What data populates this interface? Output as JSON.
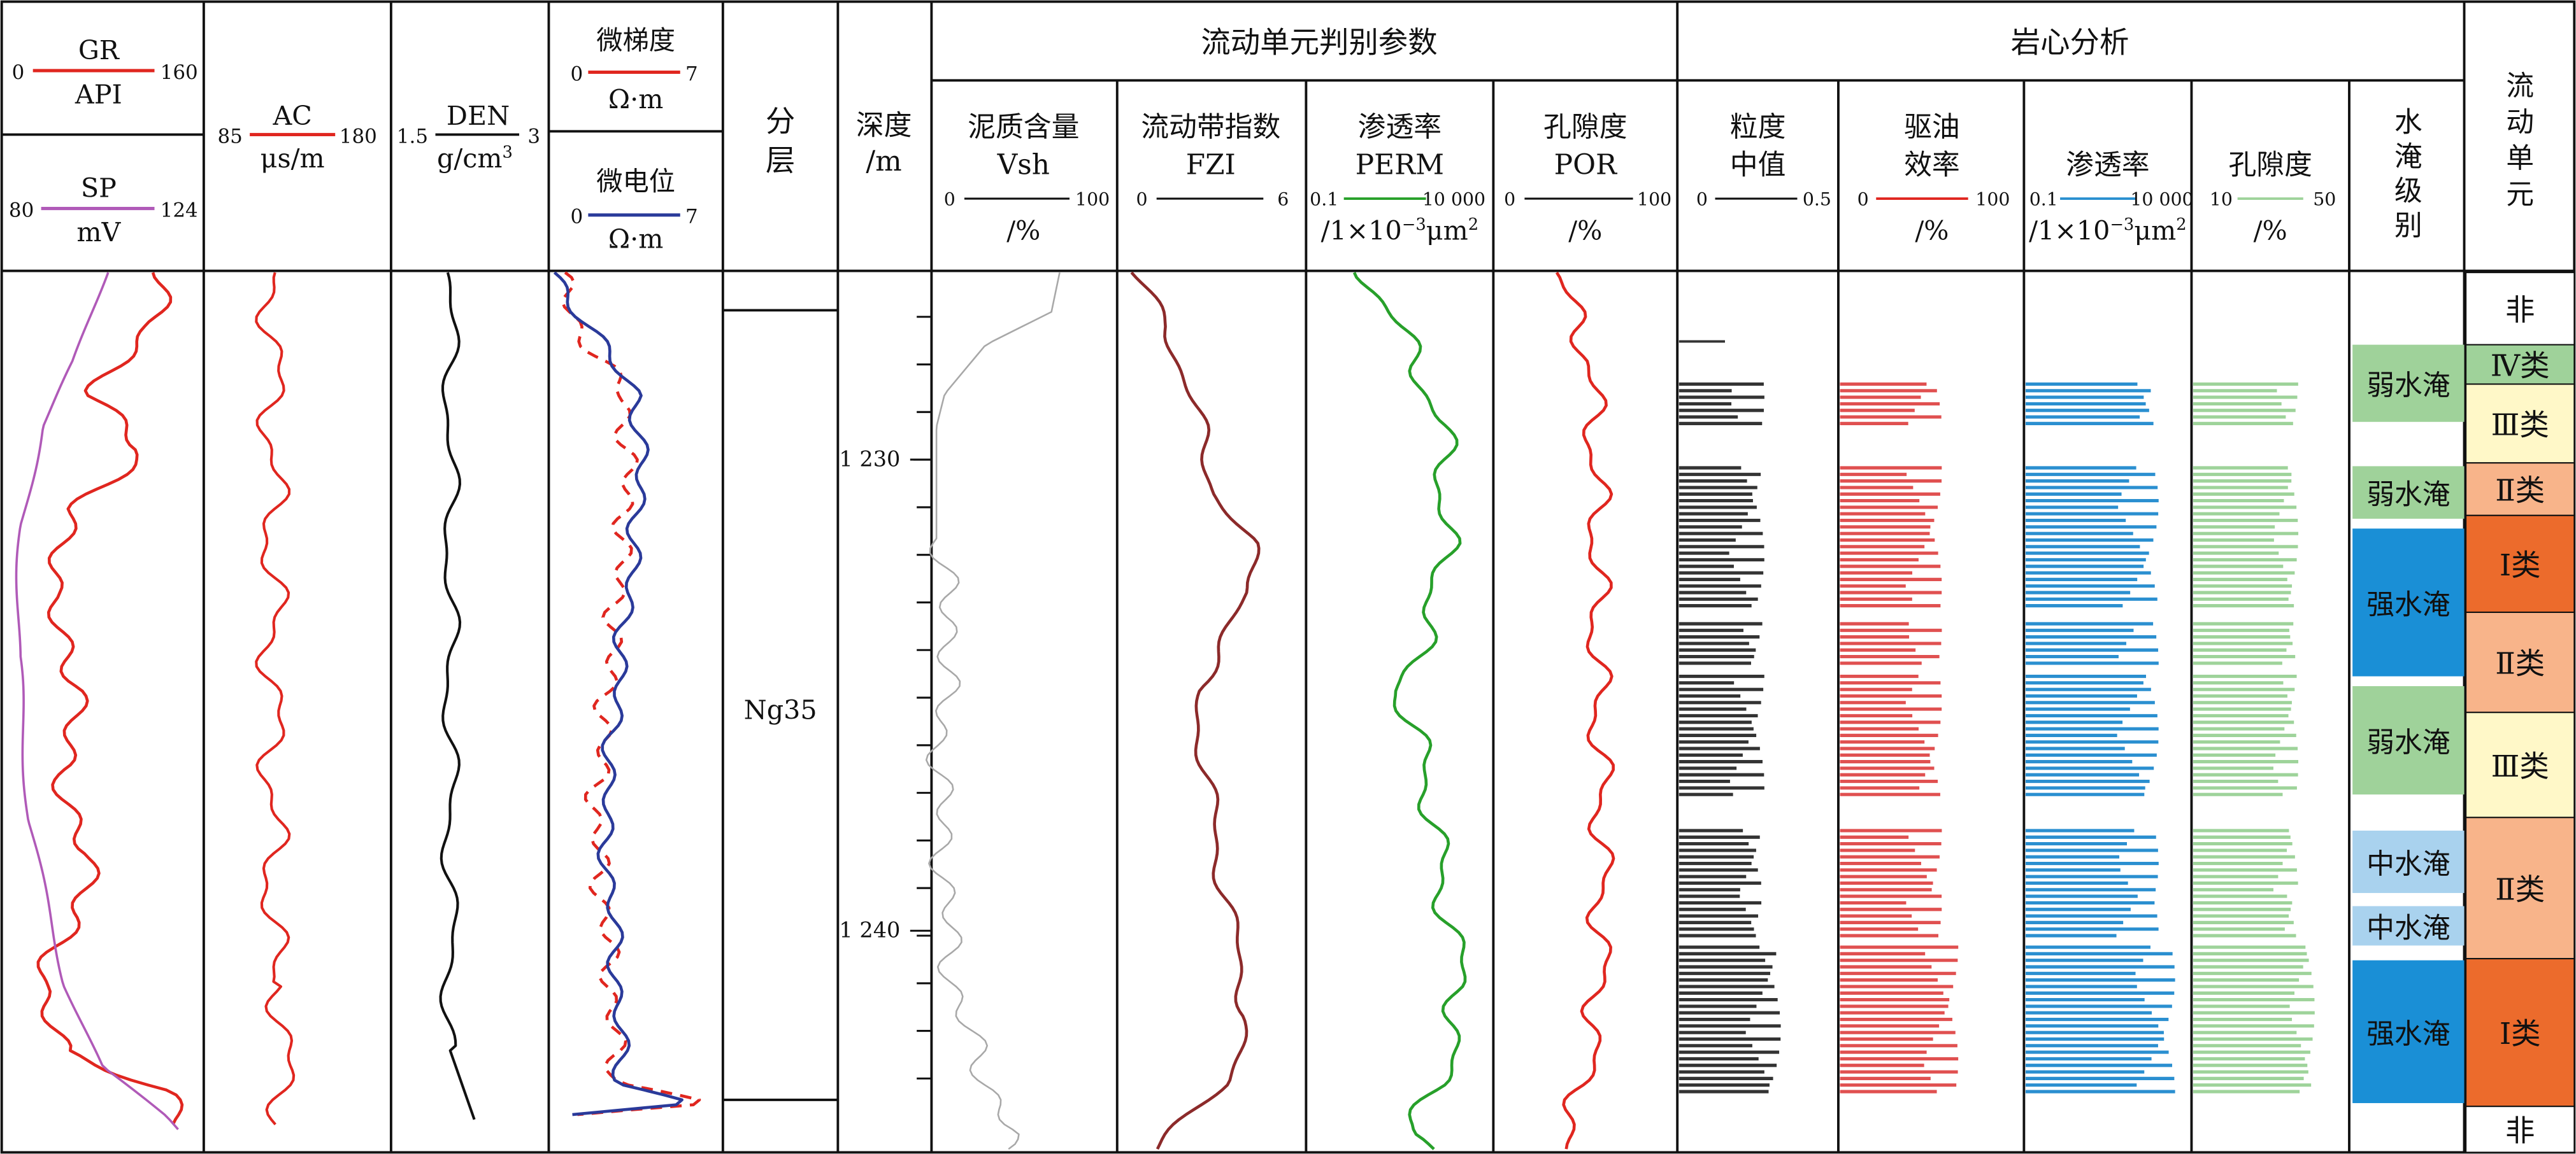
{
  "colors": {
    "gr": "#e0261f",
    "sp": "#b05ab8",
    "ac": "#e0261f",
    "den": "#111111",
    "mg": "#e0261f",
    "mn": "#2a3a9a",
    "vsh": "#a8a8a8",
    "fzi": "#8c2a2a",
    "perm": "#27a02a",
    "por": "#e0261f",
    "core_md": "#333333",
    "core_eff": "#e05050",
    "core_perm": "#2a8fd0",
    "core_por": "#9ed39a",
    "weak": "#9fd29a",
    "mid": "#a9d2ee",
    "strong": "#1a8fd6",
    "c1": "#ec6b2c",
    "c2": "#f8b48a",
    "c3": "#fff8c8",
    "c4": "#9fd29a"
  },
  "headers": {
    "gr_title": "GR",
    "gr_unit": "API",
    "gr_min": "0",
    "gr_max": "160",
    "sp_title": "SP",
    "sp_unit": "mV",
    "sp_min": "80",
    "sp_max": "124",
    "ac_title": "AC",
    "ac_unit": "μs/m",
    "ac_min": "85",
    "ac_max": "180",
    "den_title": "DEN",
    "den_min": "1.5",
    "den_max": "3",
    "mg_title": "微梯度",
    "mg_unit": "Ω·m",
    "mg_min": "0",
    "mg_max": "7",
    "mn_title": "微电位",
    "mn_unit": "Ω·m",
    "mn_min": "0",
    "mn_max": "7",
    "layer_1": "分",
    "layer_2": "层",
    "depth_1": "深度",
    "depth_2": "/m",
    "flow_param": "流动单元判别参数",
    "core_analysis": "岩心分析",
    "vsh_1": "泥质含量",
    "vsh_2": "Vsh",
    "vsh_min": "0",
    "vsh_max": "100",
    "vsh_unit": "/%",
    "fzi_1": "流动带指数",
    "fzi_2": "FZI",
    "fzi_min": "0",
    "fzi_max": "6",
    "perm_1": "渗透率",
    "perm_2": "PERM",
    "perm_min": "0.1",
    "perm_max": "10 000",
    "por_1": "孔隙度",
    "por_2": "POR",
    "por_min": "0",
    "por_max": "100",
    "por_unit": "/%",
    "md_1": "粒度",
    "md_2": "中值",
    "md_min": "0",
    "md_max": "0.5",
    "eff_1": "驱油",
    "eff_2": "效率",
    "eff_min": "0",
    "eff_max": "100",
    "eff_unit": "/%",
    "cperm_1": "渗透率",
    "cperm_min": "0.1",
    "cperm_max": "10 000",
    "cpor_1": "孔隙度",
    "cpor_min": "10",
    "cpor_max": "50",
    "cpor_unit": "/%",
    "water_1": "水",
    "water_2": "淹",
    "water_3": "级",
    "water_4": "别",
    "unit_1": "流",
    "unit_2": "动",
    "unit_3": "单",
    "unit_4": "元"
  },
  "chart_data": {
    "type": "well-log",
    "depth_ticks": [
      "1 230",
      "1 240"
    ],
    "layer_label": "Ng35",
    "water_flooding": [
      {
        "label": "弱水淹",
        "level": "weak"
      },
      {
        "label": "弱水淹",
        "level": "weak"
      },
      {
        "label": "强水淹",
        "level": "strong"
      },
      {
        "label": "弱水淹",
        "level": "weak"
      },
      {
        "label": "中水淹",
        "level": "mid"
      },
      {
        "label": "中水淹",
        "level": "mid"
      },
      {
        "label": "强水淹",
        "level": "strong"
      }
    ],
    "flow_units": [
      {
        "label": "非",
        "class": "none"
      },
      {
        "label": "Ⅳ类",
        "class": "c4"
      },
      {
        "label": "Ⅲ类",
        "class": "c3"
      },
      {
        "label": "Ⅱ类",
        "class": "c2"
      },
      {
        "label": "Ⅰ类",
        "class": "c1"
      },
      {
        "label": "Ⅱ类",
        "class": "c2"
      },
      {
        "label": "Ⅲ类",
        "class": "c3"
      },
      {
        "label": "Ⅱ类",
        "class": "c2"
      },
      {
        "label": "Ⅰ类",
        "class": "c1"
      },
      {
        "label": "非",
        "class": "none"
      }
    ]
  }
}
